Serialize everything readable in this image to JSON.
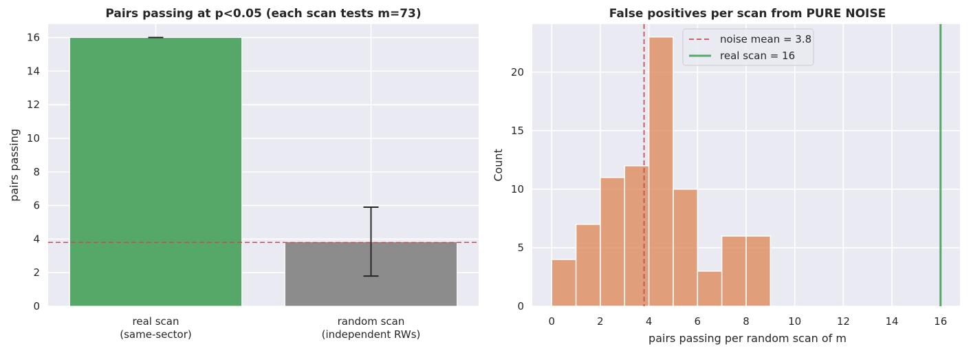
{
  "chart_data": [
    {
      "type": "bar",
      "title": "Pairs passing at p<0.05  (each scan tests m=73)",
      "xlabel": "",
      "ylabel": "pairs passing",
      "categories": [
        [
          "real scan",
          "(same-sector)"
        ],
        [
          "random scan",
          "(independent RWs)"
        ]
      ],
      "values": [
        16,
        3.85
      ],
      "error_bars": [
        [
          16,
          16
        ],
        [
          1.8,
          5.9
        ]
      ],
      "bar_colors": [
        "#55a868",
        "#8c8c8c"
      ],
      "reference_line": {
        "y": 3.8,
        "style": "dashed",
        "color": "#c44e52"
      },
      "ylim": [
        0,
        16.8
      ],
      "yticks": [
        0,
        2,
        4,
        6,
        8,
        10,
        12,
        14,
        16
      ],
      "grid": true
    },
    {
      "type": "bar",
      "subtype": "histogram",
      "title": "False positives per scan from PURE NOISE",
      "xlabel": "pairs passing per random scan of m",
      "ylabel": "Count",
      "bins": [
        {
          "x0": 0,
          "x1": 1,
          "count": 4
        },
        {
          "x0": 1,
          "x1": 2,
          "count": 7
        },
        {
          "x0": 2,
          "x1": 3,
          "count": 11
        },
        {
          "x0": 3,
          "x1": 4,
          "count": 12
        },
        {
          "x0": 4,
          "x1": 5,
          "count": 23
        },
        {
          "x0": 5,
          "x1": 6,
          "count": 10
        },
        {
          "x0": 6,
          "x1": 7,
          "count": 3
        },
        {
          "x0": 7,
          "x1": 8,
          "count": 6
        },
        {
          "x0": 8,
          "x1": 9,
          "count": 6
        }
      ],
      "bar_color": "#dd8452",
      "xlim": [
        -0.8,
        16.8
      ],
      "ylim": [
        0,
        24.1
      ],
      "xticks": [
        0,
        2,
        4,
        6,
        8,
        10,
        12,
        14,
        16
      ],
      "yticks": [
        0,
        5,
        10,
        15,
        20
      ],
      "vlines": [
        {
          "x": 3.8,
          "label": "noise mean = 3.8",
          "style": "dashed",
          "color": "#c44e52"
        },
        {
          "x": 16,
          "label": "real scan = 16",
          "style": "solid",
          "color": "#55a868"
        }
      ],
      "legend": "top-center",
      "grid": true
    }
  ]
}
